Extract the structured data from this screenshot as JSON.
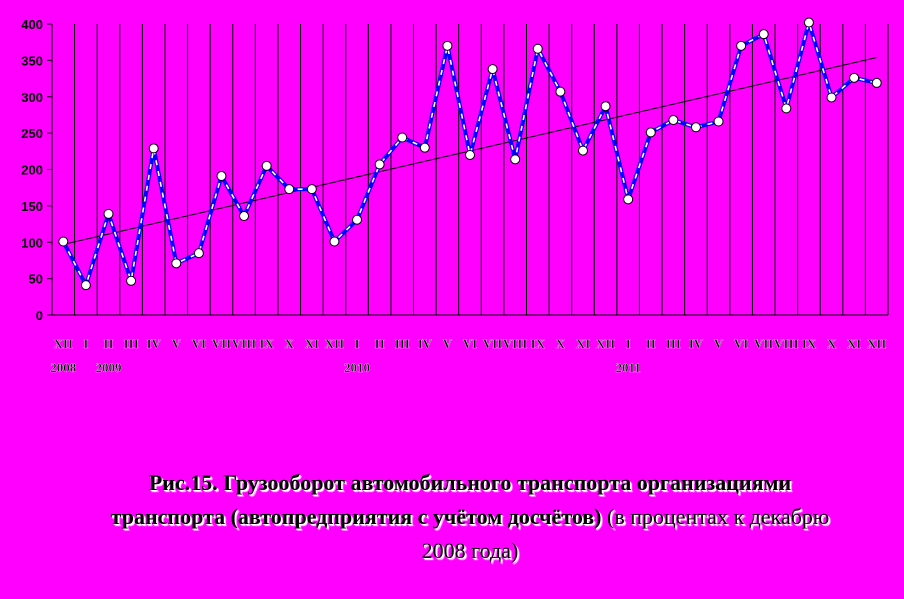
{
  "chart_data": {
    "type": "line",
    "ylim": [
      0,
      400
    ],
    "yticks": [
      0,
      50,
      100,
      150,
      200,
      250,
      300,
      350,
      400
    ],
    "x": [
      "XII",
      "I",
      "II",
      "III",
      "IV",
      "V",
      "VI",
      "VII",
      "VIII",
      "IX",
      "X",
      "XI",
      "XII",
      "I",
      "II",
      "III",
      "IV",
      "V",
      "VI",
      "VII",
      "VIII",
      "IX",
      "X",
      "XI",
      "XII",
      "I",
      "II",
      "III",
      "IV",
      "V",
      "VI",
      "VII",
      "VIII",
      "IX",
      "X",
      "XI",
      "XII"
    ],
    "year_labels": [
      {
        "index": 0,
        "label": "2008"
      },
      {
        "index": 2,
        "label": "2009"
      },
      {
        "index": 13,
        "label": "2010"
      },
      {
        "index": 25,
        "label": "2011"
      }
    ],
    "series": [
      {
        "values": [
          101,
          41,
          139,
          47,
          229,
          71,
          85,
          191,
          136,
          205,
          173,
          173,
          101,
          131,
          207,
          244,
          230,
          370,
          220,
          338,
          214,
          366,
          307,
          226,
          287,
          159,
          251,
          268,
          258,
          266,
          370,
          386,
          284,
          402,
          299,
          326,
          319
        ]
      }
    ],
    "trendline": {
      "start": 97,
      "end": 354
    },
    "colors": {
      "line": "#0000FF",
      "marker_fill": "#FFFFFF",
      "marker_stroke": "#000000",
      "trend": "#000000",
      "grid": "#000000",
      "background": "#FF00FF"
    },
    "grid": "vertical"
  },
  "caption": {
    "bold_part": "Рис.15. Грузооборот автомобильного транспорта организациями транспорта (автопредприятия с учётом досчётов)",
    "normal_part": " (в процентах к декабрю 2008 года)"
  }
}
